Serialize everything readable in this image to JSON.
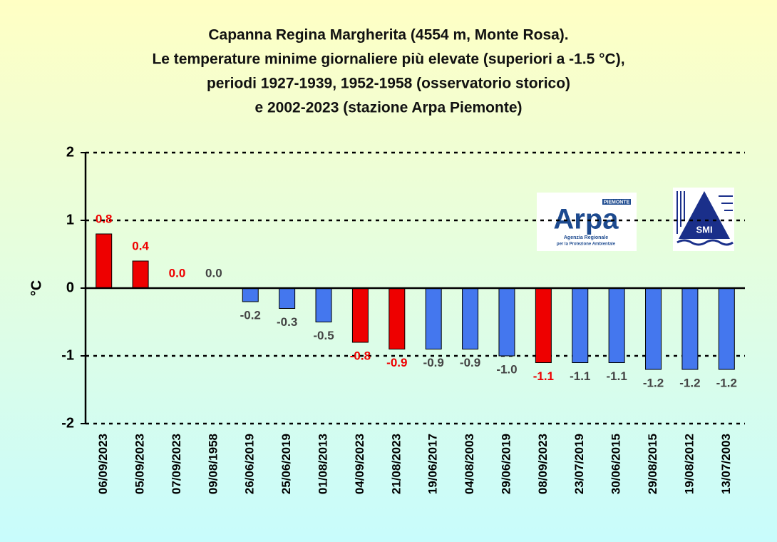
{
  "chart_data": {
    "type": "bar",
    "title": [
      "Capanna Regina Margherita (4554 m, Monte Rosa).",
      "Le temperature minime giornaliere più elevate (superiori a -1.5 °C),",
      "periodi 1927-1939, 1952-1958 (osservatorio storico)",
      "e 2002-2023 (stazione Arpa Piemonte)"
    ],
    "y_label": "°C",
    "categories": [
      "06/09/2023",
      "05/09/2023",
      "07/09/2023",
      "09/08/1958",
      "26/06/2019",
      "25/06/2019",
      "01/08/2013",
      "04/09/2023",
      "21/08/2023",
      "19/06/2017",
      "04/08/2003",
      "29/06/2019",
      "08/09/2023",
      "23/07/2019",
      "30/06/2015",
      "29/08/2015",
      "19/08/2012",
      "13/07/2003"
    ],
    "values": [
      0.8,
      0.4,
      0.0,
      0.0,
      -0.2,
      -0.3,
      -0.5,
      -0.8,
      -0.9,
      -0.9,
      -0.9,
      -1.0,
      -1.1,
      -1.1,
      -1.1,
      -1.2,
      -1.2,
      -1.2
    ],
    "value_labels": [
      "0.8",
      "0.4",
      "0.0",
      "0.0",
      "-0.2",
      "-0.3",
      "-0.5",
      "-0.8",
      "-0.9",
      "-0.9",
      "-0.9",
      "-1.0",
      "-1.1",
      "-1.1",
      "-1.1",
      "-1.2",
      "-1.2",
      "-1.2"
    ],
    "colors": [
      "#ee0000",
      "#ee0000",
      "#ee0000",
      "#4477ee",
      "#4477ee",
      "#4477ee",
      "#4477ee",
      "#ee0000",
      "#ee0000",
      "#4477ee",
      "#4477ee",
      "#4477ee",
      "#ee0000",
      "#4477ee",
      "#4477ee",
      "#4477ee",
      "#4477ee",
      "#4477ee"
    ],
    "ylim": [
      -2,
      2
    ],
    "yticks": [
      -2,
      -1,
      0,
      1,
      2
    ],
    "grid": true,
    "logos": [
      "PIEMONTE",
      "Arpa",
      "Agenzia Regionale",
      "per la Protezione Ambientale",
      "SMI"
    ]
  }
}
